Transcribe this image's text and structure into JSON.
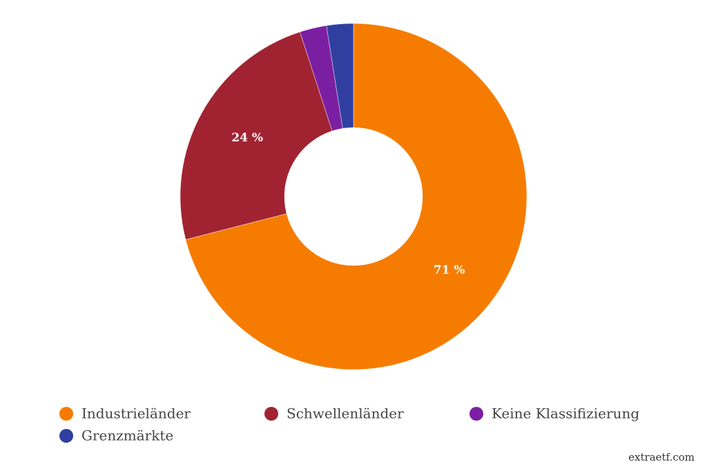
{
  "chart_data": {
    "type": "donut",
    "categories": [
      "Industrieländer",
      "Schwellenländer",
      "Keine Klassifizierung",
      "Grenzmärkte"
    ],
    "values": [
      71,
      24,
      2.5,
      2.5
    ],
    "value_labels": [
      "71 %",
      "24 %",
      null,
      null
    ],
    "colors": [
      "#f57c00",
      "#a12332",
      "#7b1fa2",
      "#303f9f"
    ],
    "legend": "bottom",
    "watermark": "extraetf.com"
  }
}
